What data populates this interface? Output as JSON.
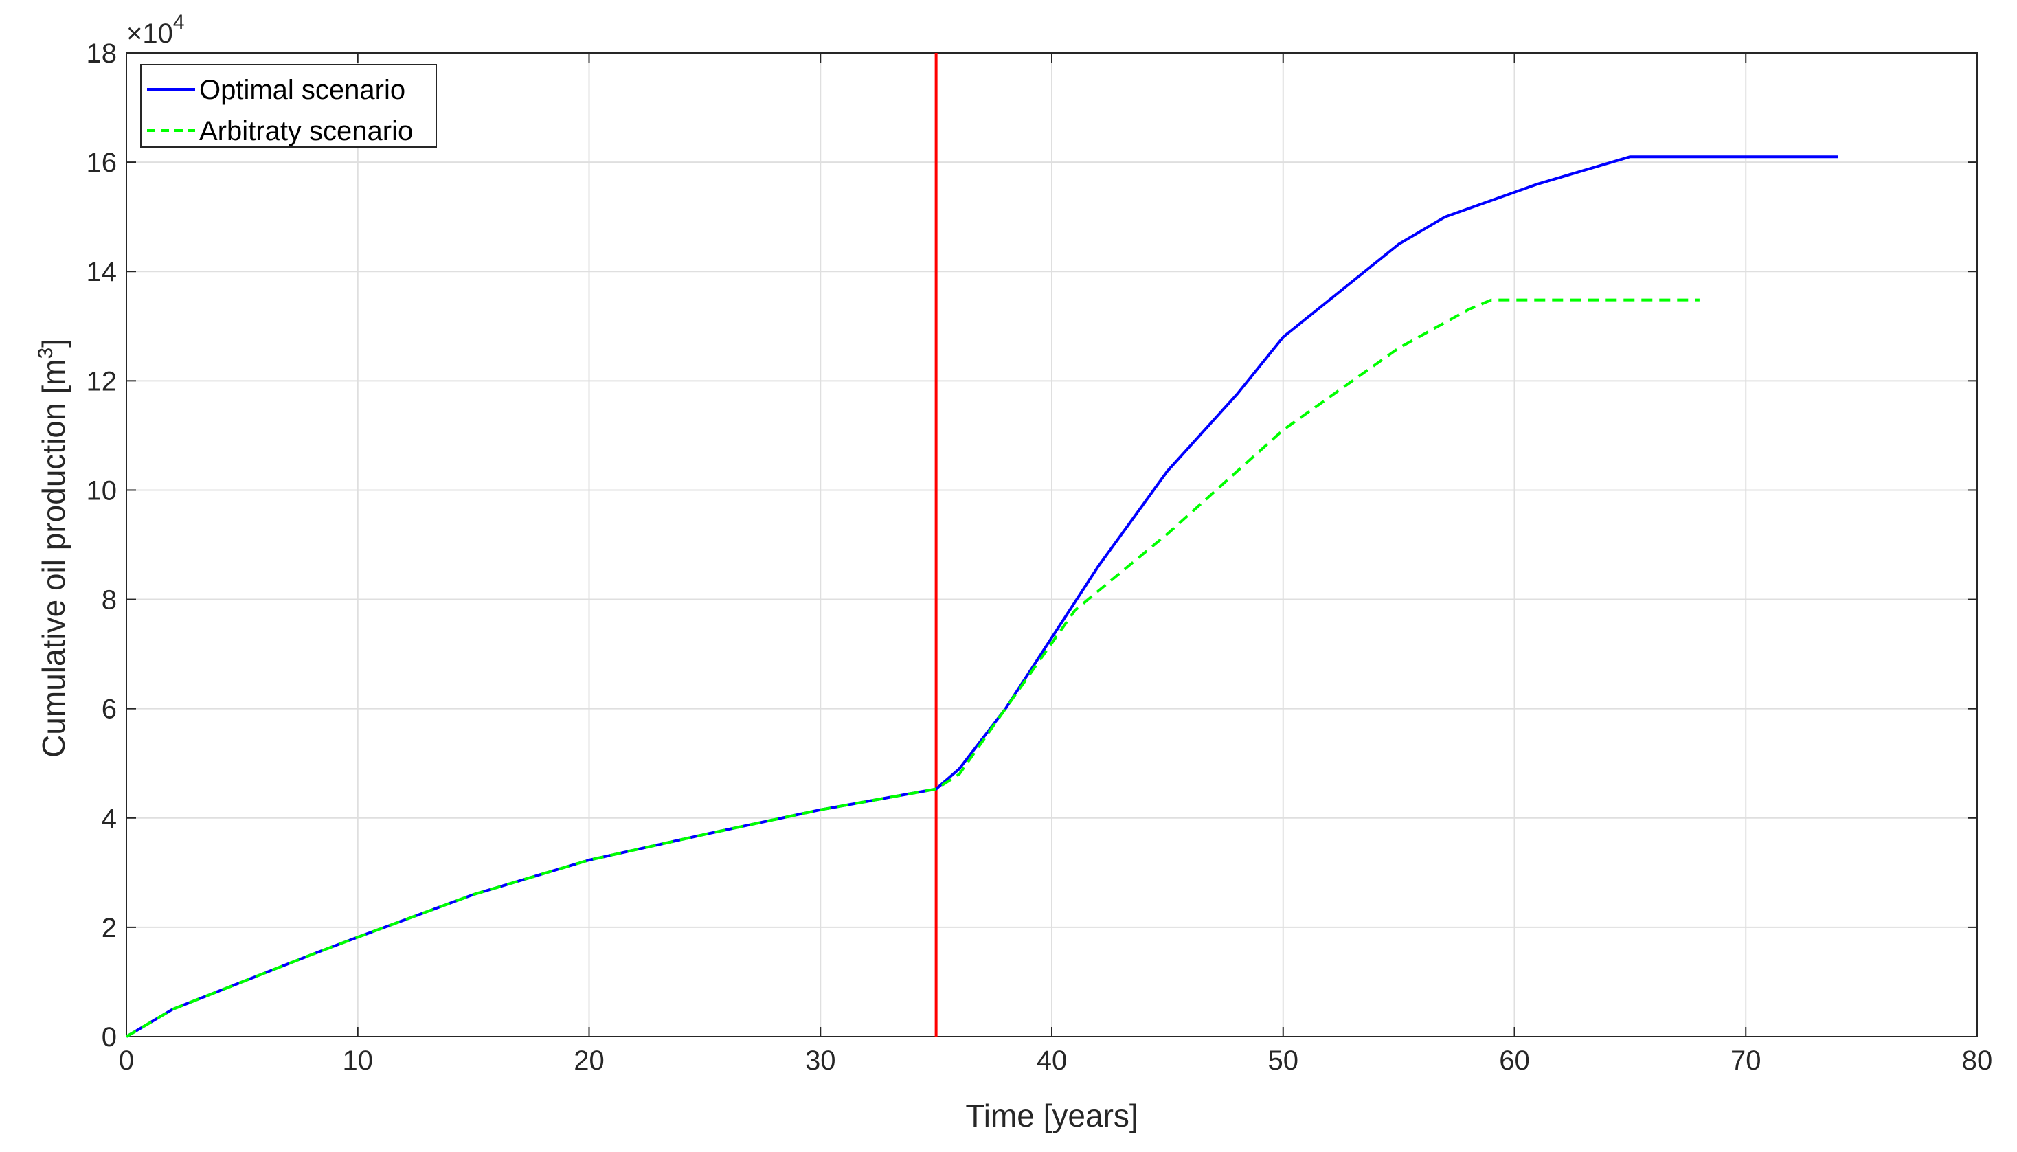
{
  "chart_data": {
    "type": "line",
    "xlabel": "Time [years]",
    "ylabel": {
      "text": "Cumulative oil production [m",
      "superscript": "3",
      "suffix": "]"
    },
    "y_exponent": {
      "prefix": "×10",
      "power": "4"
    },
    "xlim": [
      0,
      80
    ],
    "ylim": [
      0,
      180000
    ],
    "x_ticks": [
      0,
      10,
      20,
      30,
      40,
      50,
      60,
      70,
      80
    ],
    "y_ticks": [
      0,
      20000,
      40000,
      60000,
      80000,
      100000,
      120000,
      140000,
      160000,
      180000
    ],
    "x_tick_labels": [
      "0",
      "10",
      "20",
      "30",
      "40",
      "50",
      "60",
      "70",
      "80"
    ],
    "y_tick_labels": [
      "0",
      "2",
      "4",
      "6",
      "8",
      "10",
      "12",
      "14",
      "16",
      "18"
    ],
    "grid": true,
    "legend_position": "top-left",
    "vertical_marker": {
      "x": 35,
      "color": "#ff0000"
    },
    "series": [
      {
        "name": "Optimal scenario",
        "color": "#0000ff",
        "style": "solid",
        "points": [
          [
            0,
            0
          ],
          [
            2,
            5000
          ],
          [
            5,
            10000
          ],
          [
            8,
            15000
          ],
          [
            10,
            18200
          ],
          [
            15,
            26000
          ],
          [
            20,
            32300
          ],
          [
            25,
            37000
          ],
          [
            30,
            41500
          ],
          [
            35,
            45300
          ],
          [
            36,
            49000
          ],
          [
            38,
            60000
          ],
          [
            40,
            73000
          ],
          [
            42,
            86000
          ],
          [
            45,
            103500
          ],
          [
            48,
            117500
          ],
          [
            50,
            128000
          ],
          [
            55,
            145000
          ],
          [
            57,
            150000
          ],
          [
            60,
            154500
          ],
          [
            61,
            156000
          ],
          [
            65,
            161000
          ],
          [
            74,
            161000
          ]
        ]
      },
      {
        "name": "Arbitraty scenario",
        "color": "#00ff00",
        "style": "dashed",
        "points": [
          [
            0,
            0
          ],
          [
            2,
            5000
          ],
          [
            5,
            10000
          ],
          [
            8,
            15000
          ],
          [
            10,
            18200
          ],
          [
            15,
            26000
          ],
          [
            20,
            32300
          ],
          [
            25,
            37000
          ],
          [
            30,
            41500
          ],
          [
            35,
            45300
          ],
          [
            36,
            48000
          ],
          [
            38,
            60000
          ],
          [
            40,
            72000
          ],
          [
            41,
            78000
          ],
          [
            45,
            92000
          ],
          [
            50,
            111000
          ],
          [
            55,
            126000
          ],
          [
            58,
            133000
          ],
          [
            59,
            134800
          ],
          [
            68,
            134800
          ]
        ]
      }
    ]
  }
}
